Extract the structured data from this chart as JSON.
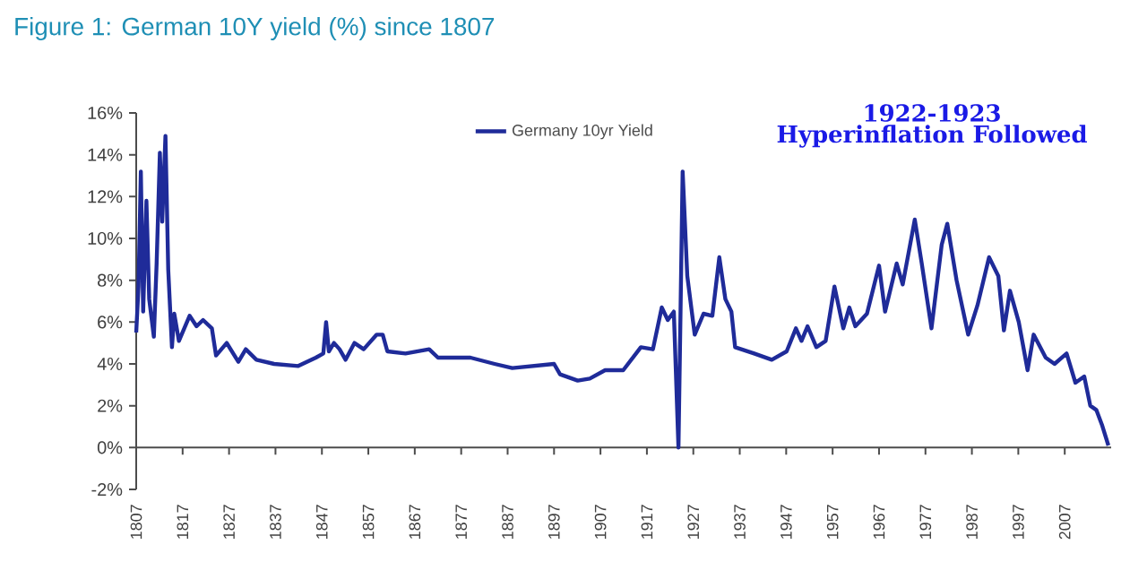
{
  "chart_data": {
    "type": "line",
    "title": "Figure 1: German 10Y yield (%) since 1807",
    "annotations": [
      "1922-1923",
      "Hyperinflation Followed"
    ],
    "xlim": [
      1807,
      2017
    ],
    "xticks": [
      1807,
      1817,
      1827,
      1837,
      1847,
      1857,
      1867,
      1877,
      1887,
      1897,
      1907,
      1917,
      1927,
      1937,
      1947,
      1957,
      1967,
      1977,
      1987,
      1997,
      2007
    ],
    "ylim": [
      -2,
      16
    ],
    "yticks": [
      {
        "value": -2,
        "label": "-2%"
      },
      {
        "value": 0,
        "label": "0%"
      },
      {
        "value": 2,
        "label": "2%"
      },
      {
        "value": 4,
        "label": "4%"
      },
      {
        "value": 6,
        "label": "6%"
      },
      {
        "value": 8,
        "label": "8%"
      },
      {
        "value": 10,
        "label": "10%"
      },
      {
        "value": 12,
        "label": "12%"
      },
      {
        "value": 14,
        "label": "14%"
      },
      {
        "value": 16,
        "label": "16%"
      }
    ],
    "legend": "top",
    "marker": "none",
    "line_style": "solid",
    "series": [
      {
        "name": "Germany 10yr Yield",
        "color": "#1f2b99",
        "x": [
          1807.0,
          1807.5,
          1808.0,
          1808.5,
          1809.2,
          1809.8,
          1810.8,
          1811.4,
          1812.1,
          1812.6,
          1813.3,
          1813.9,
          1814.7,
          1815.2,
          1816.2,
          1818.5,
          1820.0,
          1821.4,
          1823.3,
          1824.2,
          1826.5,
          1829.0,
          1830.6,
          1832.9,
          1836.7,
          1841.9,
          1845.7,
          1847.3,
          1847.9,
          1848.5,
          1849.6,
          1850.8,
          1852.1,
          1854.0,
          1856.0,
          1858.8,
          1860.1,
          1861.1,
          1865.0,
          1870.1,
          1872.0,
          1879.0,
          1884.2,
          1888.0,
          1897.0,
          1898.3,
          1902.1,
          1904.7,
          1908.0,
          1911.9,
          1915.7,
          1918.3,
          1920.2,
          1921.5,
          1922.8,
          1923.8,
          1924.7,
          1925.7,
          1927.3,
          1929.2,
          1931.1,
          1932.6,
          1933.9,
          1935.2,
          1936.0,
          1940.1,
          1943.9,
          1947.1,
          1949.1,
          1950.3,
          1951.6,
          1953.5,
          1955.5,
          1957.4,
          1959.3,
          1960.6,
          1961.9,
          1964.4,
          1967.0,
          1968.3,
          1970.8,
          1972.1,
          1974.7,
          1976.2,
          1978.3,
          1980.5,
          1981.7,
          1983.7,
          1986.2,
          1988.2,
          1990.7,
          1992.7,
          1993.9,
          1995.2,
          1997.1,
          1999.0,
          2000.3,
          2002.9,
          2004.8,
          2007.4,
          2009.3,
          2011.2,
          2012.5,
          2013.8,
          2015.0,
          2016.4
        ],
        "values": [
          5.5,
          7.7,
          13.2,
          6.5,
          11.8,
          7.1,
          5.3,
          8.8,
          14.1,
          10.8,
          14.9,
          8.5,
          4.8,
          6.4,
          5.1,
          6.3,
          5.8,
          6.1,
          5.7,
          4.4,
          5.0,
          4.1,
          4.7,
          4.2,
          4.0,
          3.9,
          4.3,
          4.5,
          6.0,
          4.6,
          5.0,
          4.7,
          4.2,
          5.0,
          4.7,
          5.4,
          5.4,
          4.6,
          4.5,
          4.7,
          4.3,
          4.3,
          4.0,
          3.8,
          4.0,
          3.5,
          3.2,
          3.3,
          3.7,
          3.7,
          4.8,
          4.7,
          6.7,
          6.1,
          6.5,
          0.0,
          13.2,
          8.2,
          5.4,
          6.4,
          6.3,
          9.1,
          7.1,
          6.5,
          4.8,
          4.5,
          4.2,
          4.6,
          5.7,
          5.1,
          5.8,
          4.8,
          5.1,
          7.7,
          5.7,
          6.7,
          5.8,
          6.4,
          8.7,
          6.5,
          8.8,
          7.8,
          10.9,
          8.8,
          5.7,
          9.7,
          10.7,
          8.0,
          5.4,
          6.8,
          9.1,
          8.2,
          5.6,
          7.5,
          6.0,
          3.7,
          5.4,
          4.3,
          4.0,
          4.5,
          3.1,
          3.4,
          2.0,
          1.8,
          1.1,
          0.1
        ]
      }
    ]
  }
}
